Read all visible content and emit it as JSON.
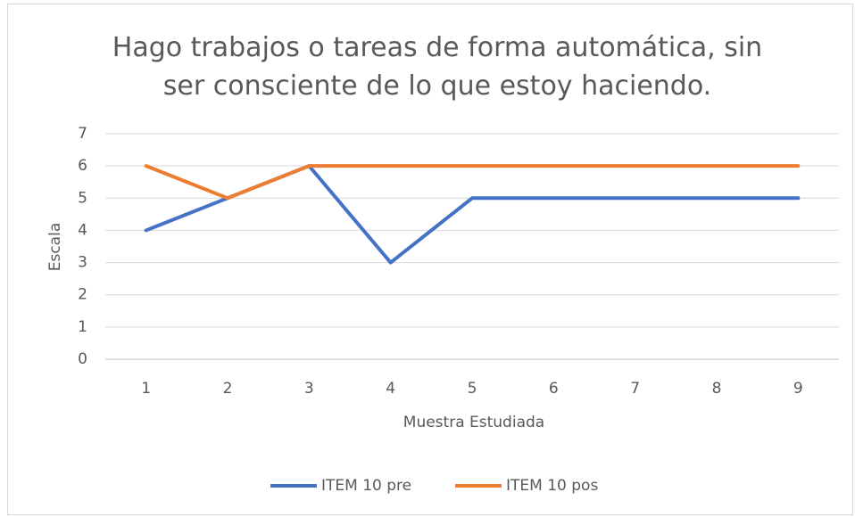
{
  "chart_data": {
    "type": "line",
    "title": "Hago trabajos o tareas de forma automática, sin ser consciente de lo que estoy haciendo.",
    "x_label": "Muestra Estudiada",
    "y_label": "Escala",
    "categories": [
      "1",
      "2",
      "3",
      "4",
      "5",
      "6",
      "7",
      "8",
      "9"
    ],
    "series": [
      {
        "name": "ITEM 10 pre",
        "color": "#4472c4",
        "values": [
          4,
          5,
          6,
          3,
          5,
          5,
          5,
          5,
          5
        ]
      },
      {
        "name": "ITEM 10 pos",
        "color": "#ed7d31",
        "values": [
          6,
          5,
          6,
          6,
          6,
          6,
          6,
          6,
          6
        ]
      }
    ],
    "ylim": [
      0,
      7
    ],
    "yticks": [
      0,
      1,
      2,
      3,
      4,
      5,
      6,
      7
    ],
    "grid": true,
    "legend": "bottom"
  }
}
